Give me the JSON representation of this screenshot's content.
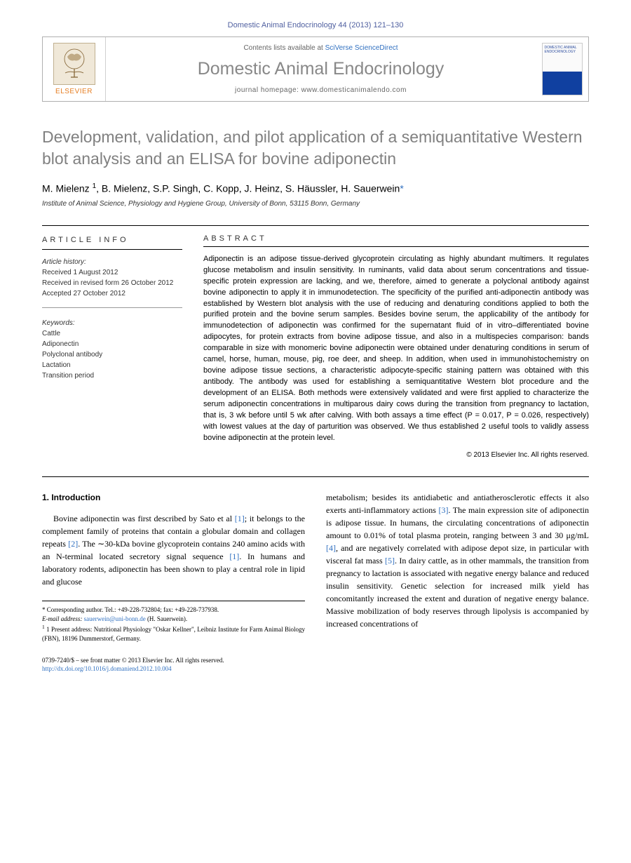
{
  "header": {
    "citation": "Domestic Animal Endocrinology 44 (2013) 121–130",
    "contents_prefix": "Contents lists available at ",
    "contents_link": "SciVerse ScienceDirect",
    "journal_name": "Domestic Animal Endocrinology",
    "homepage_prefix": "journal homepage: ",
    "homepage_url": "www.domesticanimalendo.com",
    "elsevier": "ELSEVIER",
    "cover_label": "DOMESTIC ANIMAL ENDOCRINOLOGY"
  },
  "article": {
    "title": "Development, validation, and pilot application of a semiquantitative Western blot analysis and an ELISA for bovine adiponectin",
    "authors_html": "M. Mielenz <sup>1</sup>, B. Mielenz, S.P. Singh, C. Kopp, J. Heinz, S. Häussler, H. Sauerwein<span class=\"corr\">*</span>",
    "affiliation": "Institute of Animal Science, Physiology and Hygiene Group, University of Bonn, 53115 Bonn, Germany"
  },
  "article_info": {
    "heading": "ARTICLE INFO",
    "history_label": "Article history:",
    "received": "Received 1 August 2012",
    "revised": "Received in revised form 26 October 2012",
    "accepted": "Accepted 27 October 2012",
    "keywords_label": "Keywords:",
    "keywords": [
      "Cattle",
      "Adiponectin",
      "Polyclonal antibody",
      "Lactation",
      "Transition period"
    ]
  },
  "abstract": {
    "heading": "ABSTRACT",
    "text": "Adiponectin is an adipose tissue-derived glycoprotein circulating as highly abundant multimers. It regulates glucose metabolism and insulin sensitivity. In ruminants, valid data about serum concentrations and tissue-specific protein expression are lacking, and we, therefore, aimed to generate a polyclonal antibody against bovine adiponectin to apply it in immunodetection. The specificity of the purified anti-adiponectin antibody was established by Western blot analysis with the use of reducing and denaturing conditions applied to both the purified protein and the bovine serum samples. Besides bovine serum, the applicability of the antibody for immunodetection of adiponectin was confirmed for the supernatant fluid of in vitro–differentiated bovine adipocytes, for protein extracts from bovine adipose tissue, and also in a multispecies comparison: bands comparable in size with monomeric bovine adiponectin were obtained under denaturing conditions in serum of camel, horse, human, mouse, pig, roe deer, and sheep. In addition, when used in immunohistochemistry on bovine adipose tissue sections, a characteristic adipocyte-specific staining pattern was obtained with this antibody. The antibody was used for establishing a semiquantitative Western blot procedure and the development of an ELISA. Both methods were extensively validated and were first applied to characterize the serum adiponectin concentrations in multiparous dairy cows during the transition from pregnancy to lactation, that is, 3 wk before until 5 wk after calving. With both assays a time effect (P = 0.017, P = 0.026, respectively) with lowest values at the day of parturition was observed. We thus established 2 useful tools to validly assess bovine adiponectin at the protein level.",
    "copyright": "© 2013 Elsevier Inc. All rights reserved."
  },
  "body": {
    "intro_heading": "1. Introduction",
    "col1": "Bovine adiponectin was first described by Sato et al [1]; it belongs to the complement family of proteins that contain a globular domain and collagen repeats [2]. The ∼30-kDa bovine glycoprotein contains 240 amino acids with an N-terminal located secretory signal sequence [1]. In humans and laboratory rodents, adiponectin has been shown to play a central role in lipid and glucose",
    "col2": "metabolism; besides its antidiabetic and antiatherosclerotic effects it also exerts anti-inflammatory actions [3]. The main expression site of adiponectin is adipose tissue. In humans, the circulating concentrations of adiponectin amount to 0.01% of total plasma protein, ranging between 3 and 30 μg/mL [4], and are negatively correlated with adipose depot size, in particular with visceral fat mass [5]. In dairy cattle, as in other mammals, the transition from pregnancy to lactation is associated with negative energy balance and reduced insulin sensitivity. Genetic selection for increased milk yield has concomitantly increased the extent and duration of negative energy balance. Massive mobilization of body reserves through lipolysis is accompanied by increased concentrations of"
  },
  "footnotes": {
    "corr": "* Corresponding author. Tel.: +49-228-732804; fax: +49-228-737938.",
    "email_label": "E-mail address: ",
    "email": "sauerwein@uni-bonn.de",
    "email_suffix": " (H. Sauerwein).",
    "note1": "1 Present address: Nutritional Physiology \"Oskar Kellner\", Leibniz Institute for Farm Animal Biology (FBN), 18196 Dummerstorf, Germany."
  },
  "footer": {
    "line1": "0739-7240/$ – see front matter © 2013 Elsevier Inc. All rights reserved.",
    "doi": "http://dx.doi.org/10.1016/j.domaniend.2012.10.004"
  },
  "refs": {
    "r1": "[1]",
    "r2": "[2]",
    "r3": "[3]",
    "r4": "[4]",
    "r5": "[5]"
  }
}
